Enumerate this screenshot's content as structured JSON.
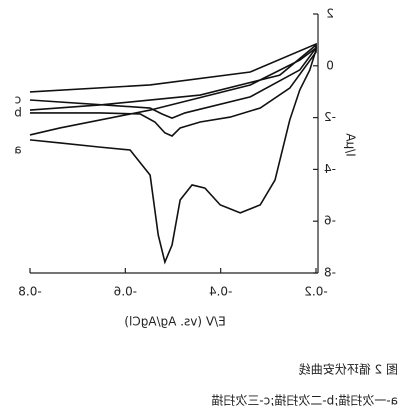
{
  "chart_data": {
    "type": "line",
    "title": "图 2 循环伏安曲线",
    "subtitle": "a-一次扫描;b-二次扫描;c-三次扫描",
    "x_label": "E/V (vs. Ag/AgCl)",
    "y_label": "I/μA",
    "xlim": [
      -0.8,
      -0.2
    ],
    "xticks": [
      -0.8,
      -0.6,
      -0.4,
      -0.2
    ],
    "ylim": [
      2,
      -8
    ],
    "yticks": [
      2,
      0,
      -2,
      -4,
      -6,
      -8
    ],
    "mirrored": true,
    "series": [
      {
        "name": "a",
        "color": "#111111",
        "x": [
          -0.8,
          -0.737,
          -0.653,
          -0.59,
          -0.548,
          -0.531,
          -0.517,
          -0.502,
          -0.485,
          -0.46,
          -0.433,
          -0.401,
          -0.359,
          -0.317,
          -0.286,
          -0.255,
          -0.234,
          -0.213,
          -0.2,
          -0.2,
          -0.234,
          -0.338,
          -0.548,
          -0.737,
          -0.8
        ],
        "values": [
          -2.86,
          -2.98,
          -3.14,
          -3.25,
          -4.22,
          -6.53,
          -7.58,
          -6.92,
          -5.18,
          -4.6,
          -4.72,
          -5.37,
          -5.68,
          -5.37,
          -4.41,
          -2.09,
          -0.93,
          -0.16,
          0.61,
          0.69,
          0.22,
          -0.74,
          -1.71,
          -2.4,
          -2.67
        ]
      },
      {
        "name": "b",
        "color": "#111111",
        "x": [
          -0.8,
          -0.653,
          -0.569,
          -0.538,
          -0.517,
          -0.502,
          -0.485,
          -0.443,
          -0.38,
          -0.317,
          -0.255,
          -0.2,
          -0.2,
          -0.276,
          -0.443,
          -0.653,
          -0.8
        ],
        "values": [
          -1.82,
          -1.82,
          -1.86,
          -2.17,
          -2.59,
          -2.71,
          -2.4,
          -2.17,
          -1.98,
          -1.63,
          -0.86,
          0.53,
          0.8,
          -0.36,
          -1.13,
          -1.51,
          -1.71
        ]
      },
      {
        "name": "c",
        "color": "#111111",
        "x": [
          -0.8,
          -0.548,
          -0.523,
          -0.502,
          -0.475,
          -0.338,
          -0.234,
          -0.2,
          -0.2,
          -0.338,
          -0.548,
          -0.8
        ],
        "values": [
          -1.32,
          -1.63,
          -1.86,
          -2.02,
          -1.82,
          -1.2,
          -0.16,
          0.69,
          0.84,
          -0.24,
          -0.74,
          -1.01
        ]
      }
    ]
  }
}
